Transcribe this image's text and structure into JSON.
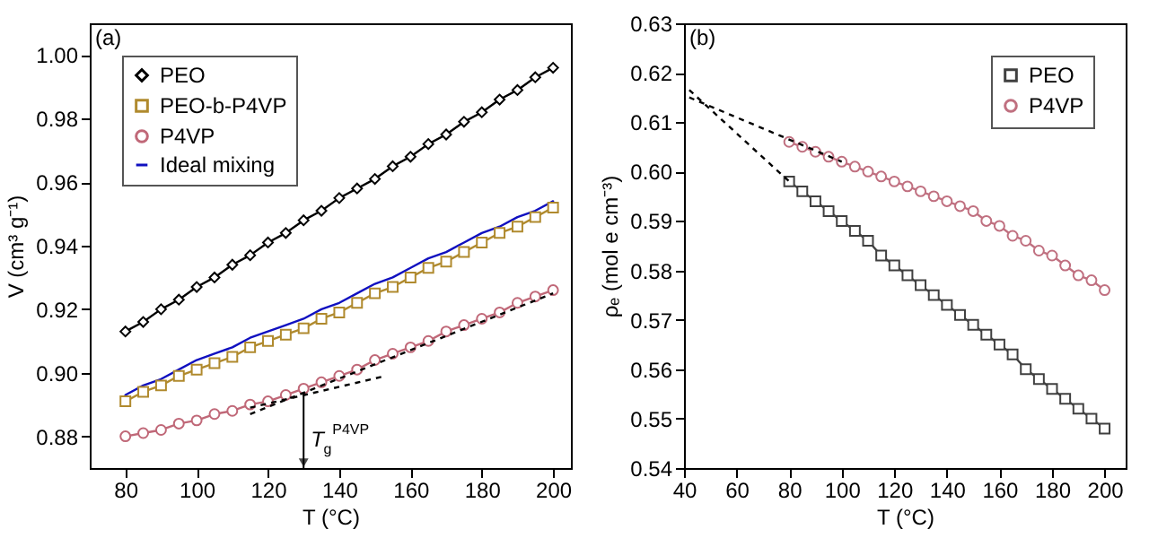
{
  "chart_data": [
    {
      "type": "line",
      "xlabel": "T (°C)",
      "ylabel": "V (cm³ g⁻¹)",
      "xlim": [
        70,
        205
      ],
      "xticks": [
        80,
        100,
        120,
        140,
        160,
        180,
        200
      ],
      "ylim": [
        0.87,
        1.01
      ],
      "yticks": [
        0.88,
        {
          "value": 0.9,
          "label": "0.90"
        },
        0.92,
        0.94,
        0.96,
        0.98,
        {
          "value": 1,
          "label": "1.00"
        }
      ],
      "legend": "top left",
      "annotations": [
        "(a)",
        {
          "text": "T$_{g}$$^{P4VP}$",
          "x": 130,
          "y": 0.894
        }
      ],
      "x": [
        80,
        85,
        90,
        95,
        100,
        105,
        110,
        115,
        120,
        125,
        130,
        135,
        140,
        145,
        150,
        155,
        160,
        165,
        170,
        175,
        180,
        185,
        190,
        195,
        200
      ],
      "series": [
        {
          "name": "PEO",
          "color": "#000000",
          "marker": "diamond",
          "values": [
            0.913,
            0.916,
            0.92,
            0.923,
            0.927,
            0.93,
            0.934,
            0.937,
            0.941,
            0.944,
            0.948,
            0.951,
            0.955,
            0.958,
            0.961,
            0.965,
            0.968,
            0.972,
            0.975,
            0.979,
            0.982,
            0.986,
            0.989,
            0.993,
            0.996
          ]
        },
        {
          "name": "PEO-b-P4VP",
          "color": "#b08a2e",
          "marker": "square",
          "values": [
            0.891,
            0.894,
            0.896,
            0.899,
            0.901,
            0.903,
            0.905,
            0.908,
            0.91,
            0.912,
            0.914,
            0.917,
            0.919,
            0.922,
            0.925,
            0.927,
            0.93,
            0.933,
            0.935,
            0.938,
            0.941,
            0.944,
            0.946,
            0.949,
            0.952
          ]
        },
        {
          "name": "P4VP",
          "color": "#c06878",
          "marker": "circle",
          "values": [
            0.88,
            0.881,
            0.882,
            0.884,
            0.885,
            0.887,
            0.888,
            0.89,
            0.891,
            0.893,
            0.895,
            0.897,
            0.899,
            0.901,
            0.904,
            0.906,
            0.908,
            0.91,
            0.913,
            0.915,
            0.917,
            0.919,
            0.922,
            0.924,
            0.926
          ]
        },
        {
          "name": "Ideal mixing",
          "color": "#1010c0",
          "marker": "none",
          "values": [
            0.893,
            0.896,
            0.898,
            0.901,
            0.904,
            0.906,
            0.908,
            0.911,
            0.913,
            0.915,
            0.917,
            0.92,
            0.922,
            0.925,
            0.928,
            0.93,
            0.933,
            0.936,
            0.938,
            0.941,
            0.944,
            0.946,
            0.949,
            0.951,
            0.954
          ]
        },
        {
          "type": "line",
          "color": "#000000",
          "line_style": "dashed",
          "x": [
            115,
            153
          ],
          "values": [
            0.889,
            0.899
          ]
        },
        {
          "type": "line",
          "color": "#000000",
          "line_style": "dashed",
          "x": [
            115,
            200
          ],
          "values": [
            0.887,
            0.925
          ]
        }
      ]
    },
    {
      "type": "line",
      "xlabel": "T (°C)",
      "ylabel": "ρₑ (mol e cm⁻³)",
      "xlim": [
        40,
        208
      ],
      "xticks": [
        40,
        60,
        80,
        100,
        120,
        140,
        160,
        180,
        200
      ],
      "ylim": [
        0.54,
        0.63
      ],
      "yticks": [
        0.54,
        0.55,
        0.56,
        0.57,
        0.58,
        0.59,
        {
          "value": 0.6,
          "label": "0.60"
        },
        0.61,
        0.62,
        0.63
      ],
      "legend": "top right",
      "annotations": [
        "(b)"
      ],
      "x": [
        80,
        85,
        90,
        95,
        100,
        105,
        110,
        115,
        120,
        125,
        130,
        135,
        140,
        145,
        150,
        155,
        160,
        165,
        170,
        175,
        180,
        185,
        190,
        195,
        200
      ],
      "series": [
        {
          "name": "PEO",
          "color": "#404040",
          "marker": "square",
          "values": [
            0.598,
            0.596,
            0.594,
            0.592,
            0.59,
            0.588,
            0.586,
            0.583,
            0.581,
            0.579,
            0.577,
            0.575,
            0.573,
            0.571,
            0.569,
            0.567,
            0.565,
            0.563,
            0.56,
            0.558,
            0.556,
            0.554,
            0.552,
            0.55,
            0.548
          ]
        },
        {
          "name": "P4VP",
          "color": "#c07080",
          "marker": "circle",
          "values": [
            0.606,
            0.605,
            0.604,
            0.603,
            0.602,
            0.601,
            0.6,
            0.599,
            0.598,
            0.597,
            0.596,
            0.595,
            0.594,
            0.593,
            0.592,
            0.59,
            0.589,
            0.587,
            0.586,
            0.584,
            0.583,
            0.581,
            0.579,
            0.578,
            0.576
          ]
        },
        {
          "type": "line",
          "color": "#000000",
          "line_style": "dashed",
          "x": [
            42,
            80
          ],
          "values": [
            0.6165,
            0.598
          ]
        },
        {
          "type": "line",
          "color": "#000000",
          "line_style": "dashed",
          "x": [
            42,
            100
          ],
          "values": [
            0.615,
            0.602
          ]
        }
      ]
    }
  ]
}
